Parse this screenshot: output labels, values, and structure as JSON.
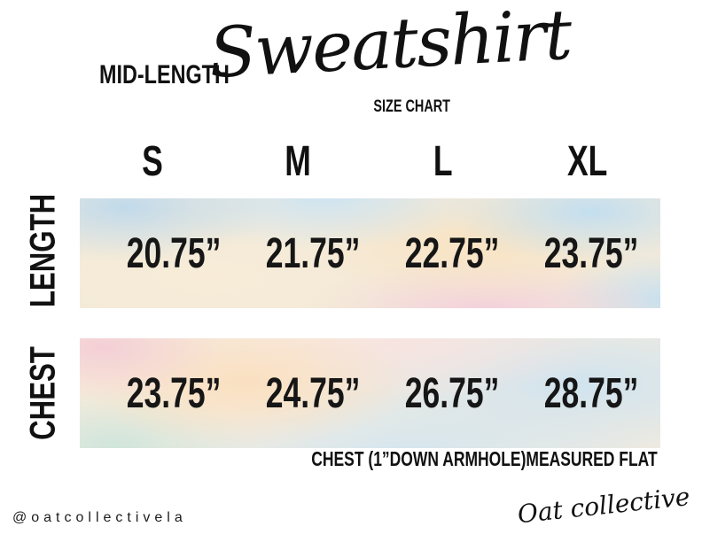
{
  "header": {
    "pretitle": "MID-LENGTH",
    "title": "Sweatshirt",
    "subtitle": "SIZE CHART"
  },
  "table": {
    "sizes": [
      "S",
      "M",
      "L",
      "XL"
    ],
    "rows": [
      {
        "label": "LENGTH",
        "values": [
          "20.75”",
          "21.75”",
          "22.75”",
          "23.75”"
        ]
      },
      {
        "label": "CHEST",
        "values": [
          "23.75”",
          "24.75”",
          "26.75”",
          "28.75”"
        ]
      }
    ],
    "note": "CHEST (1”DOWN ARMHOLE)MEASURED FLAT"
  },
  "footer": {
    "handle": "@oatcollectivela",
    "brand": "Oat collective"
  },
  "colors": {
    "text": "#111111",
    "watercolor_blue": "#cde3f0",
    "watercolor_peach": "#fae3c2",
    "watercolor_cream": "#f8ecd9",
    "watercolor_pink": "#f4ced9",
    "watercolor_mint": "#cfe6dd"
  },
  "chart_data": {
    "type": "table",
    "title": "MID-LENGTH Sweatshirt SIZE CHART",
    "columns": [
      "S",
      "M",
      "L",
      "XL"
    ],
    "rows": [
      {
        "label": "LENGTH",
        "values_inches": [
          20.75,
          21.75,
          22.75,
          23.75
        ]
      },
      {
        "label": "CHEST",
        "values_inches": [
          23.75,
          24.75,
          26.75,
          28.75
        ]
      }
    ],
    "note": "CHEST (1”DOWN ARMHOLE)MEASURED FLAT"
  }
}
